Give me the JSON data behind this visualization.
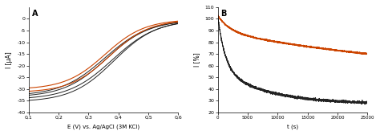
{
  "panel_A_label": "A",
  "panel_B_label": "B",
  "A_xlabel": "E (V) vs. Ag/AgCl (3M KCl)",
  "A_ylabel": "I [μA]",
  "A_xlim": [
    0.1,
    0.6
  ],
  "A_ylim": [
    -40,
    5
  ],
  "A_xticks": [
    0.1,
    0.2,
    0.3,
    0.4,
    0.5,
    0.6
  ],
  "A_xticklabels": [
    "0,1",
    "0,2",
    "0,3",
    "0,4",
    "0,5",
    "0,6"
  ],
  "A_yticks": [
    0,
    -5,
    -10,
    -15,
    -20,
    -25,
    -30,
    -35,
    -40
  ],
  "B_xlabel": "t (s)",
  "B_ylabel": "I [%]",
  "B_xlim": [
    0,
    25000
  ],
  "B_ylim": [
    20,
    110
  ],
  "B_xticks": [
    0,
    5000,
    10000,
    15000,
    20000,
    25000
  ],
  "B_xticklabels": [
    "0",
    "5000",
    "10000",
    "15000",
    "20000",
    "25000"
  ],
  "B_yticks": [
    20,
    30,
    40,
    50,
    60,
    70,
    80,
    90,
    100,
    110
  ],
  "color_orange": "#cc4400",
  "color_black": "#222222",
  "background": "#ffffff"
}
